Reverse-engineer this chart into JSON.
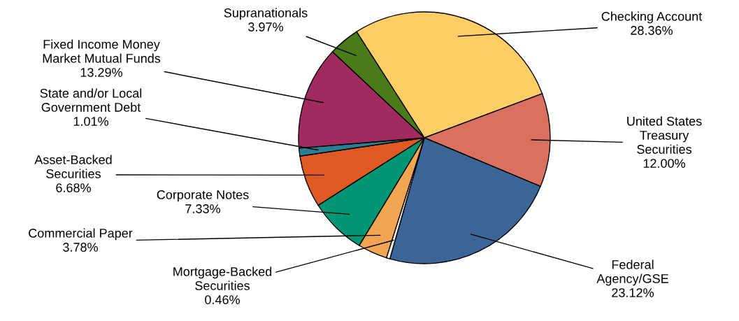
{
  "chart_data": {
    "type": "pie",
    "categories": [
      "Checking Account",
      "United States Treasury Securities",
      "Federal Agency/GSE",
      "Mortgage-Backed Securities",
      "Commercial Paper",
      "Corporate Notes",
      "Asset-Backed Securities",
      "State and/or Local Government Debt",
      "Fixed Income Money Market Mutual Funds",
      "Supranationals"
    ],
    "values": [
      28.36,
      12.0,
      23.12,
      0.46,
      3.78,
      7.33,
      6.68,
      1.01,
      13.29,
      3.97
    ],
    "colors": [
      "#fdcd66",
      "#db7060",
      "#3b6597",
      "#f5efe0",
      "#f0a553",
      "#009673",
      "#de5a22",
      "#2a7f94",
      "#a12b5f",
      "#4a7a1a"
    ],
    "value_labels": [
      "28.36%",
      "12.00%",
      "23.12%",
      "0.46%",
      "3.78%",
      "7.33%",
      "6.68%",
      "1.01%",
      "13.29%",
      "3.97%"
    ],
    "legend": false
  }
}
